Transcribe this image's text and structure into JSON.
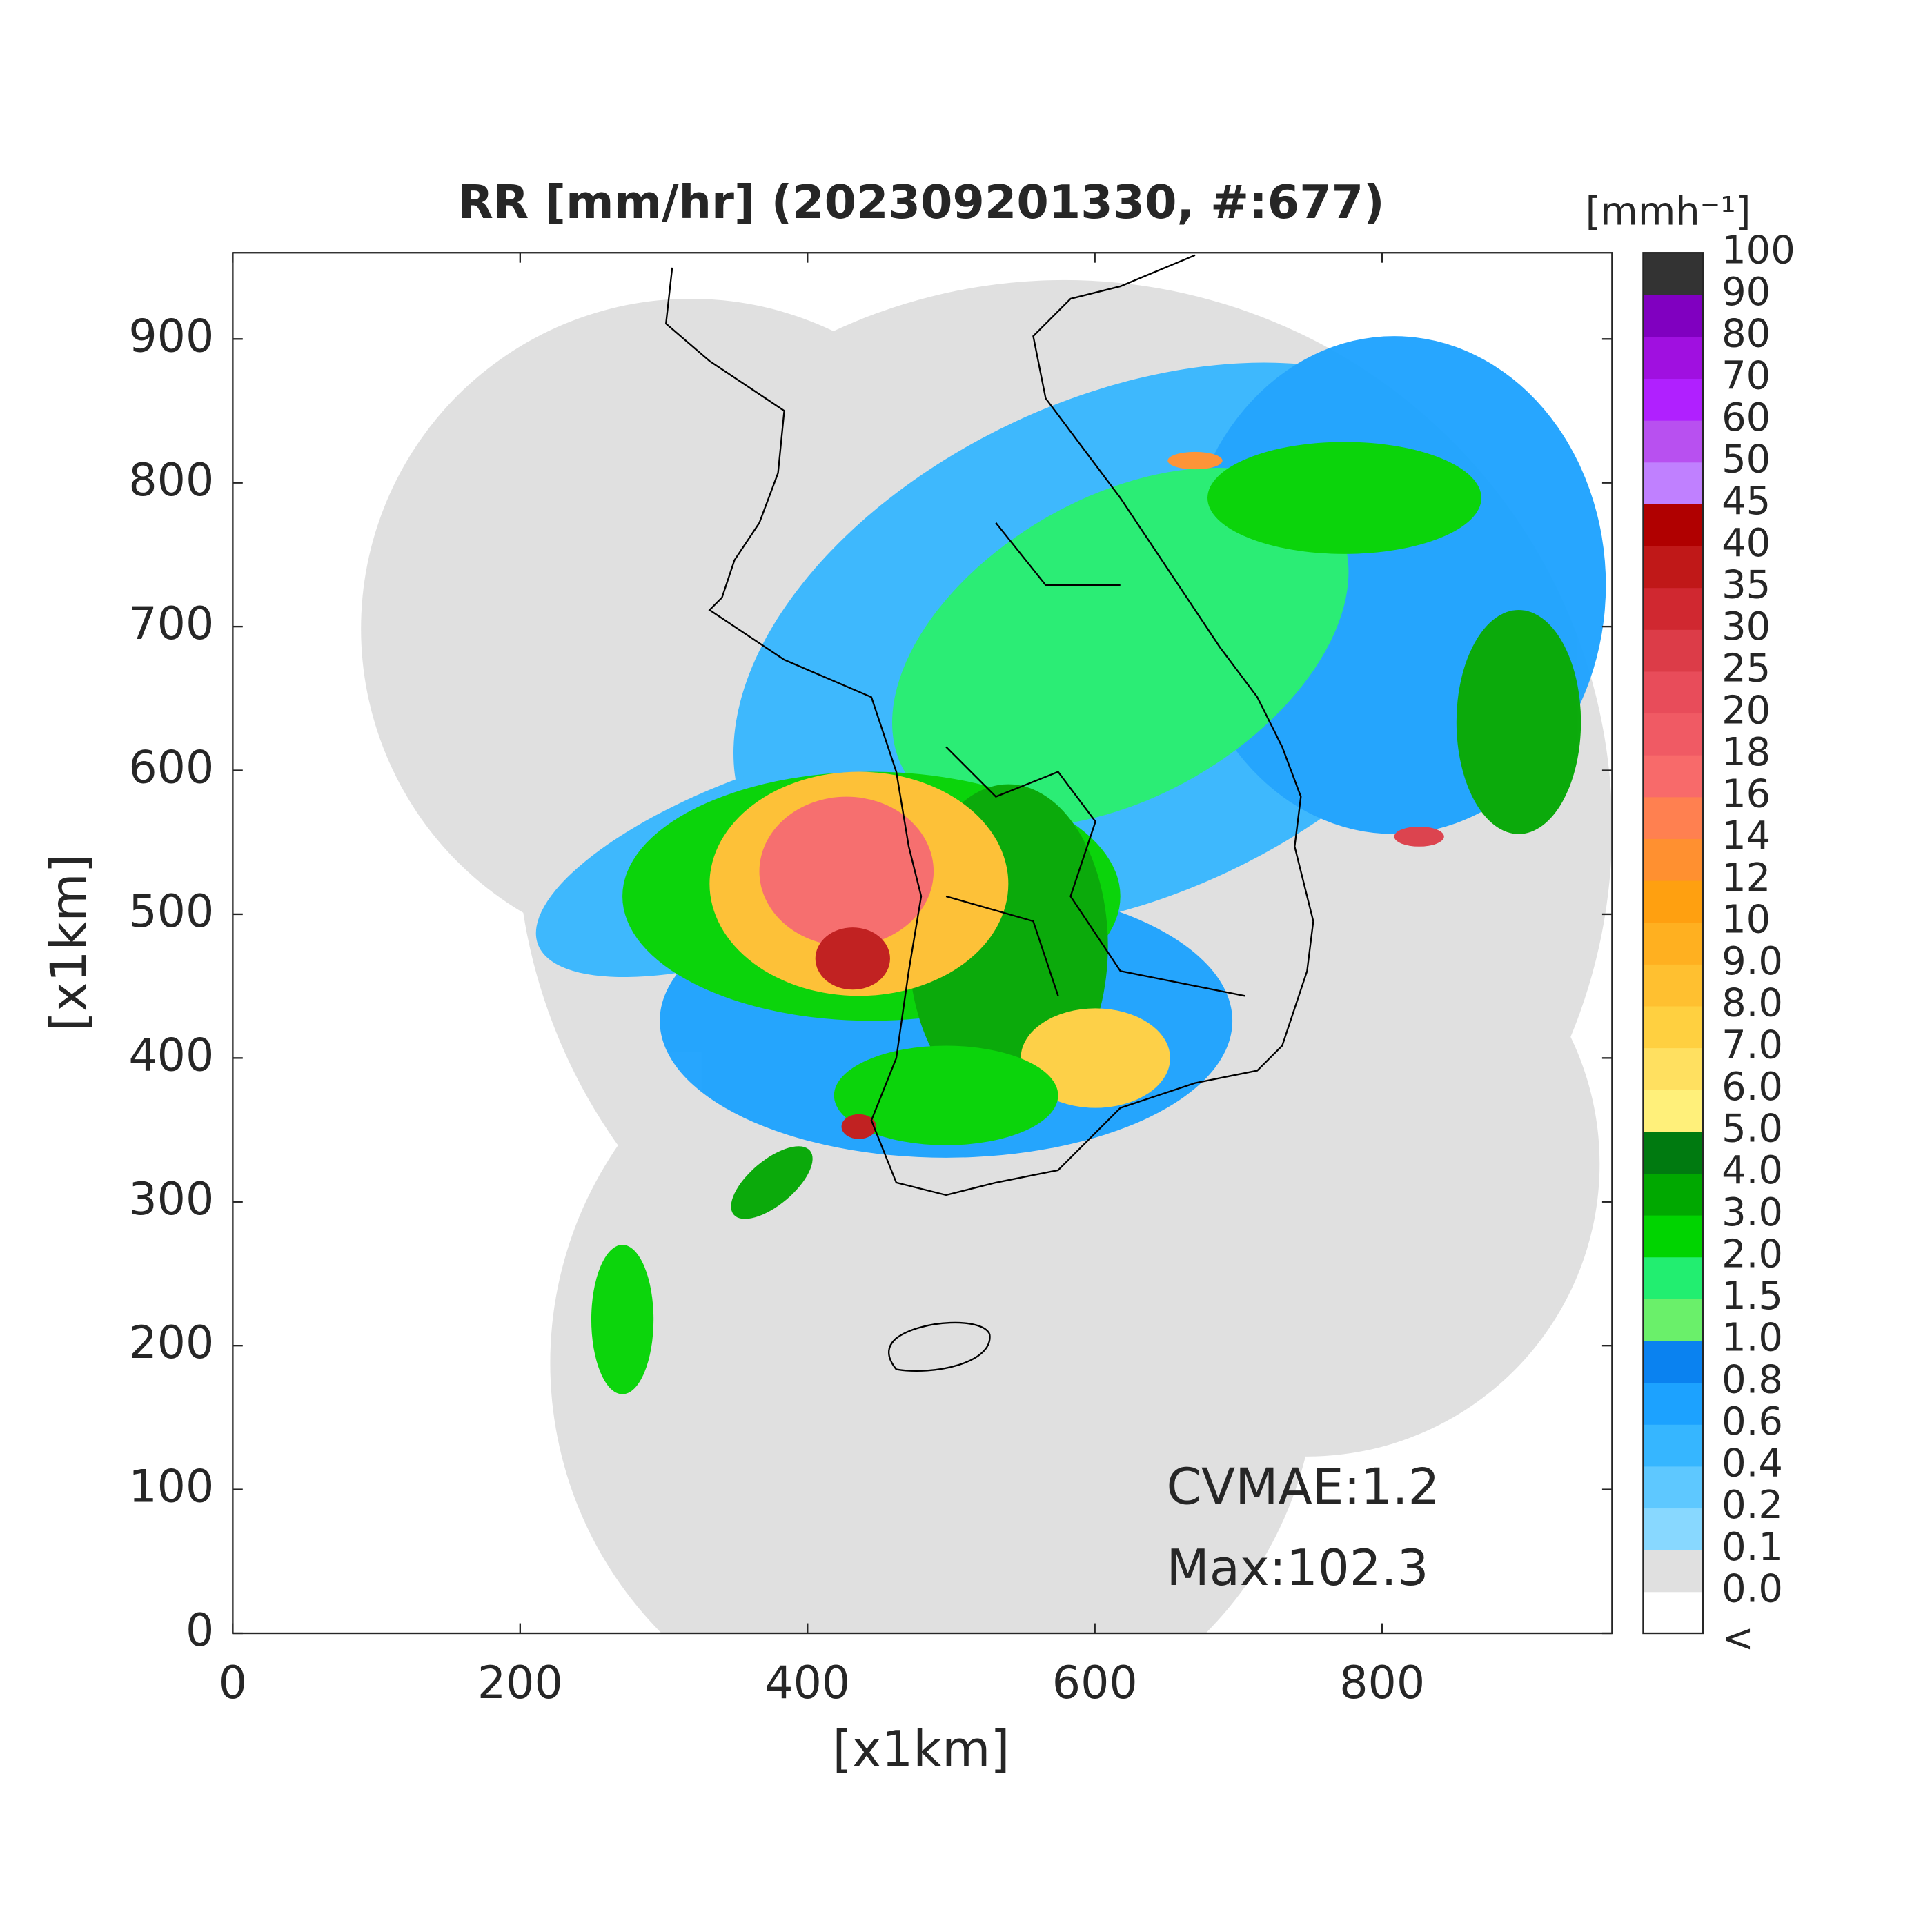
{
  "chart_data": {
    "type": "heatmap",
    "title": "RR [mm/hr] (202309201330, #:677)",
    "xlabel": "[x1km]",
    "ylabel": "[x1km]",
    "xlim": [
      0,
      960
    ],
    "ylim": [
      0,
      960
    ],
    "xticks": [
      0,
      200,
      400,
      600,
      800
    ],
    "yticks": [
      0,
      100,
      200,
      300,
      400,
      500,
      600,
      700,
      800,
      900
    ],
    "annotations": [
      "CVMAE:1.2",
      "Max:102.3"
    ],
    "colorbar": {
      "title": "[mmh⁻¹]",
      "labels": [
        "<",
        "0.0",
        "0.1",
        "0.2",
        "0.4",
        "0.6",
        "0.8",
        "1.0",
        "1.5",
        "2.0",
        "3.0",
        "4.0",
        "5.0",
        "6.0",
        "7.0",
        "8.0",
        "9.0",
        "10",
        "12",
        "14",
        "16",
        "18",
        "20",
        "25",
        "30",
        "35",
        "40",
        "45",
        "50",
        "60",
        "70",
        "80",
        "90",
        "100"
      ],
      "colors": [
        "#ffffff",
        "#e0e0e0",
        "#88d8ff",
        "#5ec8ff",
        "#36b6ff",
        "#1ca2ff",
        "#0a82f0",
        "#6af06a",
        "#22ee70",
        "#00d400",
        "#00a800",
        "#007a10",
        "#fff07a",
        "#ffe060",
        "#ffd040",
        "#ffc030",
        "#ffb020",
        "#ffa010",
        "#ff9030",
        "#ff8050",
        "#f86a6a",
        "#f05a64",
        "#e84c5a",
        "#dc3c48",
        "#d02830",
        "#c01818",
        "#b00000",
        "#c080ff",
        "#b850f0",
        "#b020ff",
        "#a010e0",
        "#8000c0",
        "#333333"
      ]
    }
  }
}
